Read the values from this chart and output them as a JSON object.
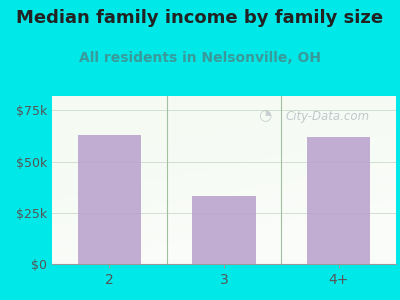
{
  "title": "Median family income by family size",
  "subtitle": "All residents in Nelsonville, OH",
  "categories": [
    "2",
    "3",
    "4+"
  ],
  "values": [
    63000,
    33000,
    62000
  ],
  "bar_color": "#b8a0cc",
  "background_outer": "#00e8e8",
  "background_inner": "#eef7ee",
  "title_color": "#222222",
  "subtitle_color": "#3a9a9a",
  "tick_label_color": "#555555",
  "yticks": [
    0,
    25000,
    50000,
    75000
  ],
  "ytick_labels": [
    "$0",
    "$25k",
    "$50k",
    "$75k"
  ],
  "ylim": [
    0,
    82000
  ],
  "watermark_text": "City-Data.com",
  "watermark_color": "#aab4bc",
  "grid_color": "#d0e0d0",
  "divider_color": "#a0c0a0",
  "title_fontsize": 13,
  "subtitle_fontsize": 10,
  "tick_fontsize": 9
}
